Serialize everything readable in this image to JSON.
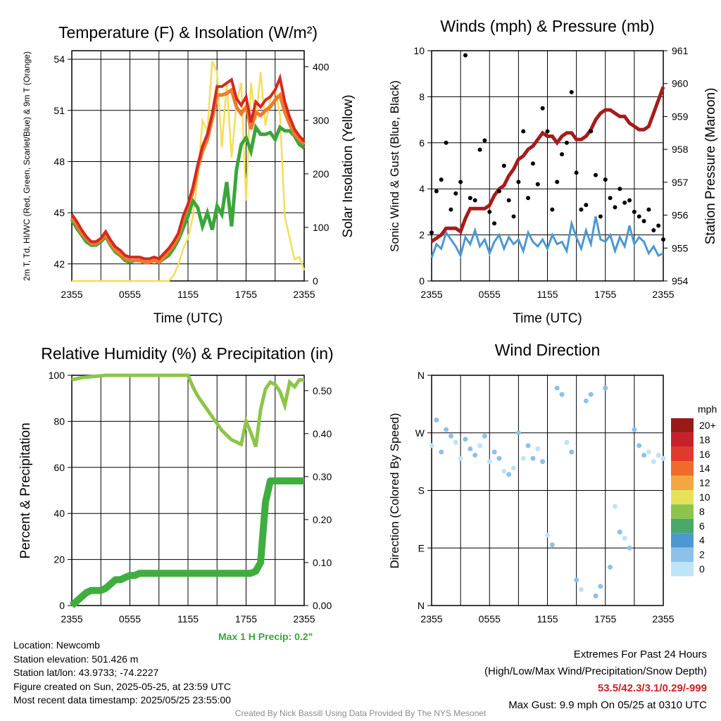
{
  "credit": "Created By Nick Bassill Using Data Provided By The NYS Mesonet",
  "info": {
    "location": "Location: Newcomb",
    "elevation": "Station elevation: 501.426 m",
    "latlon": "Station lat/lon: 43.9733; -74.2227",
    "created": "Figure created on Sun, 2025-05-25, at 23:59 UTC",
    "recent": "Most recent data timestamp: 2025/05/25 23:55:00"
  },
  "extremes": {
    "title": "Extremes For Past 24 Hours",
    "legend": "(High/Low/Max Wind/Precipitation/Snow Depth)",
    "values": "53.5/42.3/3.1/0.29/-999",
    "gust": "Max Gust: 9.9 mph On 05/25 at 0310 UTC"
  },
  "colors": {
    "temp": "#d42a1f",
    "dew": "#3aa63a",
    "hiwc": "#2d8e2d",
    "t9": "#f07a2a",
    "solar": "#f5dd5a",
    "wind": "#4d98d2",
    "gust": "#000000",
    "pressure": "#a61c1c",
    "rh": "#8dc54a",
    "precip": "#3fae3f"
  },
  "chart_data": [
    {
      "type": "line",
      "title": "Temperature (F) & Insolation (W/m²)",
      "xlabel": "Time (UTC)",
      "ylabel": "2m T, Td, HI/WC (Red, Green, Scarlet/Blue) & 9m T (Orange)",
      "ylabel_right": "Solar Insolation (Yellow)",
      "xticks": [
        "2355",
        "0555",
        "1155",
        "1755",
        "2355"
      ],
      "ylim": [
        41.0,
        54.5
      ],
      "yticks": [
        42,
        45,
        48,
        51,
        54
      ],
      "ylim_right": [
        0,
        430
      ],
      "yticks_right": [
        0,
        100,
        200,
        300,
        400
      ],
      "x_hours": [
        0,
        0.5,
        1,
        1.5,
        2,
        2.5,
        3,
        3.5,
        4,
        4.5,
        5,
        5.5,
        6,
        6.5,
        7,
        7.5,
        8,
        8.5,
        9,
        9.5,
        10,
        10.5,
        11,
        11.5,
        12,
        12.5,
        13,
        13.5,
        14,
        14.5,
        15,
        15.5,
        16,
        16.5,
        17,
        17.5,
        18,
        18.5,
        19,
        19.5,
        20,
        20.5,
        21,
        21.5,
        22,
        22.5,
        23,
        23.5,
        24
      ],
      "series": [
        {
          "name": "2m T",
          "values": [
            44.9,
            44.5,
            44.0,
            43.6,
            43.3,
            43.3,
            43.5,
            43.9,
            43.4,
            43.0,
            42.8,
            42.5,
            42.4,
            42.4,
            42.4,
            42.3,
            42.3,
            42.4,
            42.3,
            42.6,
            42.9,
            43.3,
            43.8,
            44.8,
            45.5,
            46.5,
            47.8,
            48.9,
            49.6,
            50.8,
            52.4,
            52.4,
            52.6,
            52.8,
            51.7,
            51.3,
            51.8,
            50.3,
            51.5,
            51.2,
            51.6,
            51.8,
            52.2,
            52.9,
            51.5,
            50.6,
            49.9,
            49.5,
            49.2
          ]
        },
        {
          "name": "9m T",
          "values": [
            44.7,
            44.3,
            43.8,
            43.5,
            43.2,
            43.2,
            43.4,
            43.7,
            43.2,
            42.8,
            42.6,
            42.3,
            42.2,
            42.2,
            42.2,
            42.1,
            42.1,
            42.2,
            42.1,
            42.4,
            42.7,
            43.1,
            43.6,
            44.6,
            45.4,
            46.2,
            47.6,
            48.6,
            49.3,
            50.5,
            51.9,
            51.9,
            52.0,
            52.2,
            51.2,
            50.8,
            51.2,
            49.9,
            50.9,
            50.7,
            51.0,
            51.2,
            51.6,
            51.9,
            50.9,
            50.2,
            49.6,
            49.3,
            49.0
          ]
        },
        {
          "name": "Td",
          "values": [
            44.6,
            44.1,
            43.7,
            43.3,
            43.1,
            43.1,
            43.3,
            43.6,
            43.1,
            42.7,
            42.5,
            42.2,
            42.1,
            42.2,
            42.2,
            42.1,
            42.1,
            42.2,
            42.1,
            42.3,
            42.5,
            42.9,
            43.4,
            44.1,
            44.8,
            45.7,
            45.3,
            44.2,
            45.0,
            44.0,
            45.4,
            44.9,
            46.8,
            44.2,
            47.5,
            49.0,
            49.4,
            48.6,
            50.0,
            49.6,
            49.6,
            49.7,
            49.3,
            50.0,
            49.8,
            49.8,
            49.5,
            49.0,
            48.8
          ]
        },
        {
          "name": "Solar Insolation",
          "values": [
            0,
            0,
            0,
            0,
            0,
            0,
            0,
            0,
            0,
            0,
            0,
            0,
            0,
            0,
            0,
            0,
            0,
            0,
            0,
            0,
            0,
            10,
            30,
            60,
            80,
            120,
            190,
            300,
            280,
            410,
            390,
            250,
            370,
            230,
            330,
            370,
            150,
            370,
            300,
            390,
            290,
            340,
            360,
            310,
            120,
            80,
            40,
            45,
            20
          ]
        }
      ]
    },
    {
      "type": "line",
      "title": "Winds (mph) & Pressure (mb)",
      "xlabel": "Time (UTC)",
      "ylabel": "Sonic Wind & Gust (Blue, Black)",
      "ylabel_right": "Station Pressure (Maroon)",
      "xticks": [
        "2355",
        "0555",
        "1155",
        "1755",
        "2355"
      ],
      "ylim": [
        0,
        10
      ],
      "yticks": [
        0,
        2,
        4,
        6,
        8,
        10
      ],
      "ylim_right": [
        954,
        961
      ],
      "yticks_right": [
        954,
        955,
        956,
        957,
        958,
        959,
        960,
        961
      ],
      "x_hours": [
        0,
        0.5,
        1,
        1.5,
        2,
        2.5,
        3,
        3.5,
        4,
        4.5,
        5,
        5.5,
        6,
        6.5,
        7,
        7.5,
        8,
        8.5,
        9,
        9.5,
        10,
        10.5,
        11,
        11.5,
        12,
        12.5,
        13,
        13.5,
        14,
        14.5,
        15,
        15.5,
        16,
        16.5,
        17,
        17.5,
        18,
        18.5,
        19,
        19.5,
        20,
        20.5,
        21,
        21.5,
        22,
        22.5,
        23,
        23.5,
        24
      ],
      "series": [
        {
          "name": "Sonic Wind",
          "values": [
            1.0,
            1.6,
            1.4,
            2.1,
            1.8,
            1.5,
            1.1,
            1.9,
            1.6,
            2.2,
            1.5,
            1.8,
            1.2,
            1.7,
            2.0,
            1.4,
            1.9,
            1.6,
            1.8,
            1.3,
            2.1,
            1.7,
            1.5,
            1.8,
            1.4,
            2.0,
            1.6,
            1.7,
            1.3,
            2.5,
            1.9,
            1.4,
            2.2,
            1.6,
            2.8,
            1.8,
            1.7,
            2.0,
            1.3,
            1.9,
            1.5,
            2.4,
            1.6,
            1.9,
            1.7,
            1.2,
            1.5,
            1.1,
            1.2
          ]
        },
        {
          "name": "Station Pressure",
          "values": [
            955.2,
            955.3,
            955.4,
            955.6,
            955.6,
            955.6,
            955.5,
            955.9,
            956.2,
            956.2,
            956.2,
            956.2,
            956.3,
            956.6,
            956.8,
            956.9,
            957.2,
            957.4,
            957.7,
            957.8,
            958.0,
            958.1,
            958.3,
            958.5,
            958.4,
            958.4,
            958.2,
            958.4,
            958.5,
            958.5,
            958.3,
            958.3,
            958.4,
            958.6,
            958.9,
            959.1,
            959.2,
            959.2,
            959.1,
            959.0,
            959.0,
            958.8,
            958.7,
            958.6,
            958.6,
            958.7,
            959.1,
            959.5,
            959.9
          ]
        },
        {
          "name": "Gust",
          "values": [
            2.1,
            3.9,
            4.4,
            6.0,
            3.1,
            3.8,
            4.3,
            9.8,
            3.6,
            3.5,
            5.7,
            6.1,
            3.0,
            2.5,
            3.9,
            5.0,
            3.5,
            2.8,
            4.3,
            6.5,
            3.6,
            5.1,
            4.2,
            7.5,
            6.5,
            3.1,
            4.3,
            5.5,
            6.0,
            8.2,
            4.7,
            3.1,
            3.3,
            6.5,
            4.6,
            2.8,
            4.4,
            3.6,
            3.2,
            4.0,
            3.4,
            3.5,
            3.0,
            2.8,
            2.6,
            3.1,
            2.2,
            2.4,
            1.8
          ]
        }
      ]
    },
    {
      "type": "line",
      "title": "Relative Humidity (%) & Precipitation (in)",
      "ylabel": "Percent & Precipitation",
      "xticks": [
        "2355",
        "0555",
        "1155",
        "1755",
        "2355"
      ],
      "ylim": [
        0,
        100
      ],
      "yticks": [
        0,
        20,
        40,
        60,
        80,
        100
      ],
      "ylim_right": [
        0,
        0.5357
      ],
      "yticks_right": [
        0.0,
        0.1,
        0.2,
        0.3,
        0.4,
        0.5
      ],
      "x_hours": [
        0,
        0.5,
        1,
        1.5,
        2,
        2.5,
        3,
        3.5,
        4,
        4.5,
        5,
        5.5,
        6,
        6.5,
        7,
        7.5,
        8,
        8.5,
        9,
        9.5,
        10,
        10.5,
        11,
        11.5,
        12,
        12.5,
        13,
        13.5,
        14,
        14.5,
        15,
        15.5,
        16,
        16.5,
        17,
        17.5,
        18,
        18.5,
        19,
        19.5,
        20,
        20.5,
        21,
        21.5,
        22,
        22.5,
        23,
        23.5,
        24
      ],
      "series": [
        {
          "name": "Relative Humidity",
          "values": [
            98,
            98.5,
            99,
            99.2,
            99.4,
            99.6,
            99.8,
            100,
            100,
            100,
            100,
            100,
            100,
            100,
            100,
            100,
            100,
            100,
            100,
            100,
            100,
            100,
            100,
            100,
            100,
            95,
            91,
            88,
            85,
            82,
            79,
            76,
            74,
            72,
            71,
            70,
            80,
            75,
            69,
            85,
            94,
            97,
            96,
            93,
            87,
            97,
            95,
            98,
            98
          ]
        },
        {
          "name": "Precipitation",
          "values": [
            0,
            0.01,
            0.02,
            0.03,
            0.035,
            0.035,
            0.035,
            0.04,
            0.05,
            0.06,
            0.06,
            0.065,
            0.07,
            0.07,
            0.075,
            0.075,
            0.075,
            0.075,
            0.075,
            0.075,
            0.075,
            0.075,
            0.075,
            0.075,
            0.075,
            0.075,
            0.075,
            0.075,
            0.075,
            0.075,
            0.075,
            0.075,
            0.075,
            0.075,
            0.075,
            0.075,
            0.075,
            0.075,
            0.08,
            0.1,
            0.24,
            0.29,
            0.29,
            0.29,
            0.29,
            0.29,
            0.29,
            0.29,
            0.29
          ]
        }
      ],
      "annotation": "Max 1 H Precip: 0.2\""
    },
    {
      "type": "scatter",
      "title": "Wind Direction",
      "ylabel": "Direction (Colored By Speed)",
      "xticks": [
        "2355",
        "0555",
        "1155",
        "1755",
        "2355"
      ],
      "yticks": [
        "N",
        "E",
        "S",
        "W",
        "N"
      ],
      "ylim": [
        0,
        360
      ],
      "legend_title": "mph",
      "legend_labels": [
        "20+",
        "18",
        "16",
        "14",
        "12",
        "10",
        "8",
        "6",
        "4",
        "2",
        "0"
      ],
      "legend_colors": [
        "#9a1a1a",
        "#c8202a",
        "#e03a2a",
        "#f06a2a",
        "#f6a640",
        "#e5e25a",
        "#8dc54a",
        "#4aa86a",
        "#4d98d2",
        "#8cc2ea",
        "#bfe3f7"
      ],
      "x_hours": [
        0,
        0.5,
        1,
        1.5,
        2,
        2.5,
        3,
        3.5,
        4,
        4.5,
        5,
        5.5,
        6,
        6.5,
        7,
        7.5,
        8,
        8.5,
        9,
        9.5,
        10,
        10.5,
        11,
        11.5,
        12,
        12.5,
        13,
        13.5,
        14,
        14.5,
        15,
        15.5,
        16,
        16.5,
        17,
        17.5,
        18,
        18.5,
        19,
        19.5,
        20,
        20.5,
        21,
        21.5,
        22,
        22.5,
        23,
        23.5,
        24
      ],
      "series": [
        {
          "name": "Direction",
          "values": [
            250,
            290,
            240,
            275,
            265,
            255,
            230,
            260,
            245,
            235,
            250,
            265,
            225,
            240,
            230,
            210,
            205,
            215,
            270,
            230,
            250,
            230,
            245,
            225,
            110,
            95,
            340,
            330,
            255,
            240,
            40,
            25,
            320,
            330,
            15,
            30,
            340,
            60,
            155,
            115,
            105,
            90,
            275,
            250,
            235,
            240,
            225,
            235,
            230
          ]
        },
        {
          "name": "Speed",
          "values": [
            1.5,
            2.5,
            2.0,
            3.0,
            2.2,
            1.8,
            1.2,
            2.4,
            2.0,
            2.8,
            1.9,
            2.4,
            1.4,
            2.1,
            2.6,
            1.6,
            2.4,
            1.9,
            2.3,
            1.5,
            2.7,
            2.1,
            1.8,
            2.3,
            1.6,
            2.5,
            2.0,
            2.1,
            1.5,
            3.2,
            2.4,
            1.6,
            2.8,
            2.0,
            3.5,
            2.2,
            2.1,
            2.5,
            1.4,
            2.4,
            1.8,
            3.1,
            2.0,
            2.4,
            2.1,
            1.3,
            1.8,
            1.2,
            1.3
          ]
        }
      ]
    }
  ]
}
